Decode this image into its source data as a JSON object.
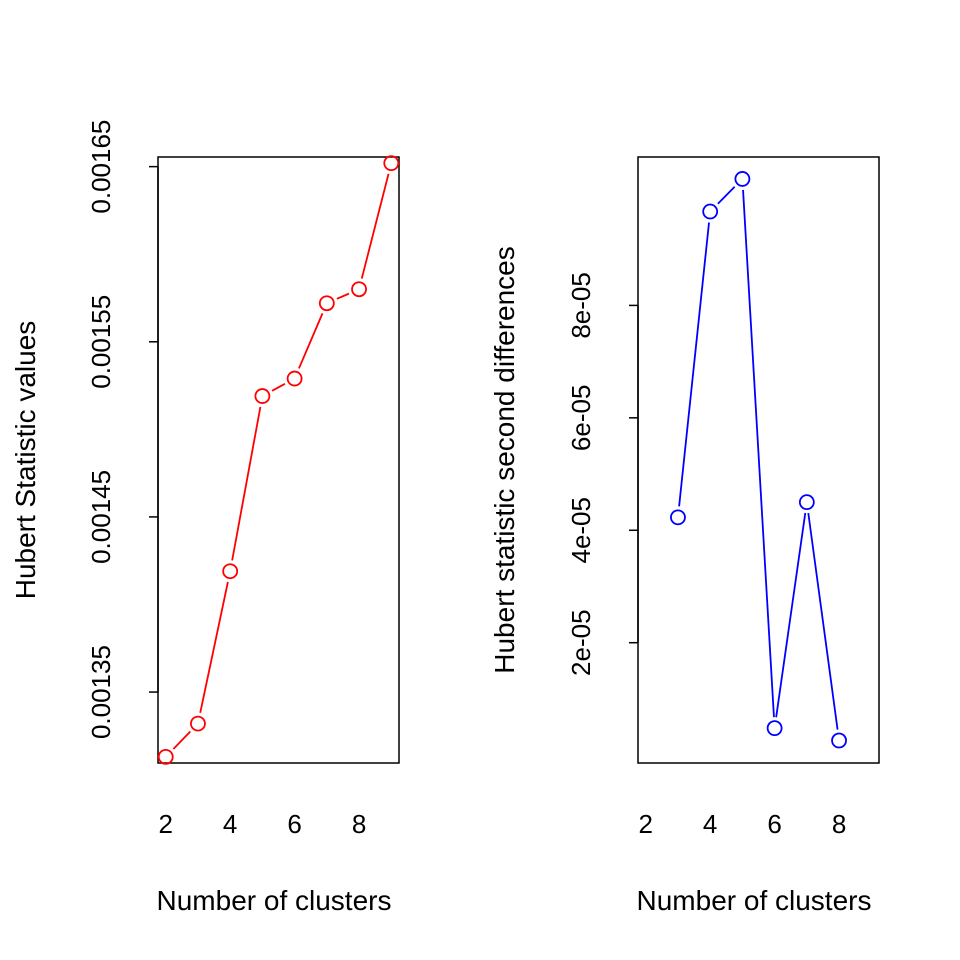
{
  "chart_data": [
    {
      "type": "line",
      "xlabel": "Number of clusters",
      "ylabel": "Hubert Statistic values",
      "x": [
        2,
        3,
        4,
        5,
        6,
        7,
        8,
        9
      ],
      "series": [
        {
          "values": [
            0.001313,
            0.001332,
            0.001419,
            0.001519,
            0.001529,
            0.001572,
            0.00158,
            0.001652
          ],
          "color": "#ff0000",
          "marker": "open-circle"
        }
      ],
      "xlim": [
        1.76,
        9.24
      ],
      "ylim": [
        0.0013095,
        0.0016555
      ],
      "xticks": [
        2,
        4,
        6,
        8
      ],
      "xtick_labels": [
        "2",
        "4",
        "6",
        "8"
      ],
      "yticks": [
        0.00135,
        0.00145,
        0.00155,
        0.00165
      ],
      "ytick_labels": [
        "0.00135",
        "0.00145",
        "0.00155",
        "0.00165"
      ],
      "grid": false,
      "box": true
    },
    {
      "type": "line",
      "xlabel": "Number of clusters",
      "ylabel": "Hubert statistic second differences",
      "x": [
        3,
        4,
        5,
        6,
        7,
        8
      ],
      "series": [
        {
          "values": [
            4.23e-05,
            9.67e-05,
            0.0001025,
            4.8e-06,
            4.5e-05,
            2.6e-06
          ],
          "color": "#0000ff",
          "marker": "open-circle"
        }
      ],
      "xlim": [
        1.76,
        9.24
      ],
      "ylim": [
        -1.4e-06,
        0.0001064
      ],
      "xticks": [
        2,
        4,
        6,
        8
      ],
      "xtick_labels": [
        "2",
        "4",
        "6",
        "8"
      ],
      "yticks": [
        2e-05,
        4e-05,
        6e-05,
        8e-05
      ],
      "ytick_labels": [
        "2e-05",
        "4e-05",
        "6e-05",
        "8e-05"
      ],
      "grid": false,
      "box": true
    }
  ]
}
